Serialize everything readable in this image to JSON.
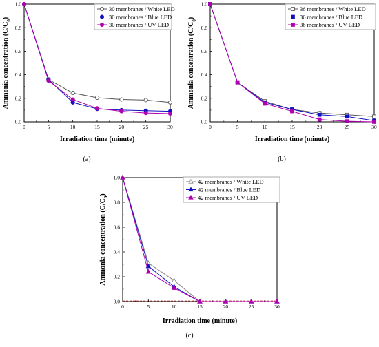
{
  "panels": [
    {
      "label": "(a)",
      "chart_data": {
        "type": "line",
        "xlabel": "Irradiation time (minute)",
        "ylabel_main": "Ammonia concentration (C/C",
        "ylabel_sub": "0",
        "ylabel_close": ")",
        "xlim": [
          0,
          30
        ],
        "ylim": [
          0,
          1.0
        ],
        "xticks": [
          0,
          5,
          10,
          15,
          20,
          25,
          30
        ],
        "yticks": [
          0.0,
          0.2,
          0.4,
          0.6,
          0.8,
          1.0
        ],
        "ytick_labels": [
          "0.0",
          "0.2",
          "0.4",
          "0.6",
          "0.8",
          "1.0"
        ],
        "x": [
          0,
          5,
          10,
          15,
          20,
          25,
          30
        ],
        "legend_position": "top-right",
        "series": [
          {
            "name": "30 membranes / White LED",
            "values": [
              1.0,
              0.36,
              0.245,
              0.205,
              0.19,
              0.185,
              0.165
            ],
            "color": "#555555",
            "marker": "circle-open"
          },
          {
            "name": "30 membranes / Blue LED",
            "values": [
              1.0,
              0.36,
              0.165,
              0.11,
              0.1,
              0.095,
              0.09
            ],
            "color": "#1010c0",
            "marker": "circle"
          },
          {
            "name": "30 membranes / UV LED",
            "values": [
              1.0,
              0.35,
              0.19,
              0.115,
              0.09,
              0.075,
              0.07
            ],
            "color": "#b000b0",
            "marker": "circle"
          }
        ]
      }
    },
    {
      "label": "(b)",
      "chart_data": {
        "type": "line",
        "xlabel": "Irradiation time (minute)",
        "ylabel_main": "Ammonia concentration (C/C",
        "ylabel_sub": "0",
        "ylabel_close": ")",
        "xlim": [
          0,
          30
        ],
        "ylim": [
          0,
          1.0
        ],
        "xticks": [
          0,
          5,
          10,
          15,
          20,
          25,
          30
        ],
        "yticks": [
          0.0,
          0.2,
          0.4,
          0.6,
          0.8,
          1.0
        ],
        "ytick_labels": [
          "0.0",
          "0.2",
          "0.4",
          "0.6",
          "0.8",
          "1.0"
        ],
        "x": [
          0,
          5,
          10,
          15,
          20,
          25,
          30
        ],
        "legend_position": "top-right",
        "series": [
          {
            "name": "36 membranes / White LED",
            "values": [
              1.0,
              0.335,
              0.175,
              0.105,
              0.075,
              0.06,
              0.045
            ],
            "color": "#555555",
            "marker": "square-open"
          },
          {
            "name": "36 membranes / Blue LED",
            "values": [
              1.0,
              0.335,
              0.165,
              0.105,
              0.06,
              0.045,
              0.01
            ],
            "color": "#1010c0",
            "marker": "square"
          },
          {
            "name": "36 membranes / UV LED",
            "values": [
              1.0,
              0.335,
              0.155,
              0.09,
              0.02,
              0.005,
              0.0
            ],
            "color": "#b000b0",
            "marker": "square"
          }
        ]
      }
    },
    {
      "label": "(c)",
      "chart_data": {
        "type": "line",
        "xlabel": "Irradiation time (minute)",
        "ylabel_main": "Ammonia concentration (C/C",
        "ylabel_sub": "0",
        "ylabel_close": ")",
        "xlim": [
          0,
          30
        ],
        "ylim": [
          0,
          1.0
        ],
        "xticks": [
          0,
          5,
          10,
          15,
          20,
          25,
          30
        ],
        "yticks": [
          0.0,
          0.2,
          0.4,
          0.6,
          0.8,
          1.0
        ],
        "ytick_labels": [
          "0.0",
          "0.2",
          "0.4",
          "0.6",
          "0.8",
          "1.0"
        ],
        "x": [
          0,
          5,
          10,
          15,
          20,
          25,
          30
        ],
        "legend_position": "top-right",
        "reference_line": {
          "y": 0.0,
          "color": "#d04040"
        },
        "series": [
          {
            "name": "42 membranes / White LED",
            "values": [
              1.0,
              0.31,
              0.17,
              0.0,
              0.0,
              0.0,
              0.0
            ],
            "color": "#888888",
            "marker": "triangle-open"
          },
          {
            "name": "42 membranes / Blue LED",
            "values": [
              1.0,
              0.285,
              0.12,
              0.0,
              0.0,
              0.0,
              0.0
            ],
            "color": "#1010c0",
            "marker": "triangle"
          },
          {
            "name": "42 membranes / UV LED",
            "values": [
              1.0,
              0.24,
              0.11,
              0.0,
              0.0,
              0.0,
              0.0
            ],
            "color": "#b000b0",
            "marker": "triangle"
          }
        ]
      }
    }
  ]
}
